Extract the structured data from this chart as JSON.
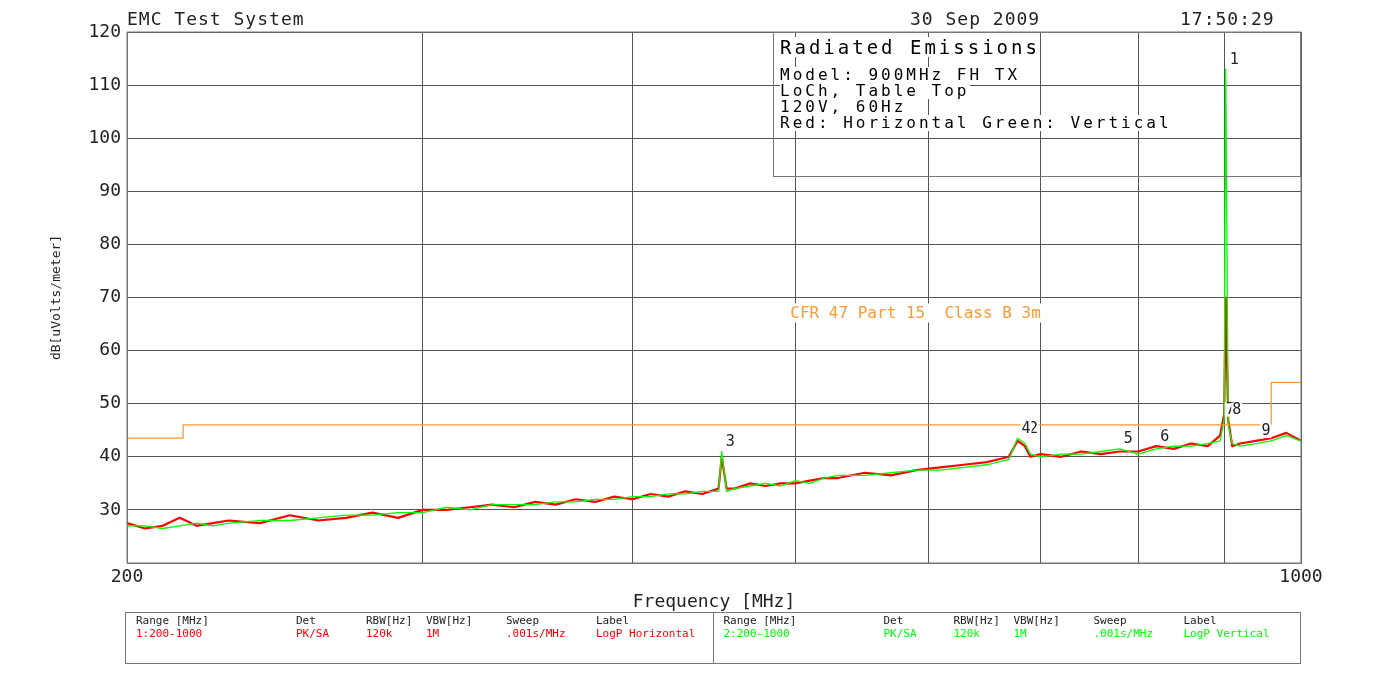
{
  "chart_data": {
    "type": "line",
    "title": "Radiated Emissions",
    "xlabel": "Frequency [MHz]",
    "ylabel": "dB[uVolts/meter]",
    "log": "x",
    "grid": true,
    "xlim": [
      200,
      1000
    ],
    "ylim": [
      20,
      120
    ],
    "xticks": [
      200,
      {
        "value": 300,
        "label": null
      },
      {
        "value": 400,
        "label": null
      },
      {
        "value": 500,
        "label": null
      },
      {
        "value": 600,
        "label": null
      },
      {
        "value": 700,
        "label": null
      },
      {
        "value": 800,
        "label": null
      },
      {
        "value": 900,
        "label": null
      },
      1000
    ],
    "yticks": [
      30,
      40,
      50,
      60,
      70,
      80,
      90,
      100,
      110,
      120
    ],
    "series": [
      {
        "color": "#ff0000",
        "x": [
          200,
          205,
          210,
          215,
          220,
          225,
          230,
          240,
          250,
          260,
          270,
          280,
          290,
          300,
          310,
          320,
          330,
          340,
          350,
          360,
          370,
          380,
          390,
          400,
          410,
          420,
          430,
          440,
          450,
          452,
          455,
          460,
          470,
          480,
          490,
          500,
          510,
          520,
          530,
          550,
          570,
          590,
          610,
          630,
          650,
          660,
          670,
          678,
          685,
          690,
          700,
          720,
          740,
          760,
          780,
          800,
          820,
          840,
          860,
          880,
          895,
          900,
          902,
          905,
          910,
          920,
          940,
          960,
          980,
          1000
        ],
        "values": [
          27.5,
          26.5,
          27,
          28.5,
          27,
          27.5,
          28,
          27.5,
          29,
          28,
          28.5,
          29.5,
          28.5,
          30,
          30,
          30.5,
          31,
          30.5,
          31.5,
          31,
          32,
          31.5,
          32.5,
          32,
          33,
          32.5,
          33.5,
          33,
          34,
          40,
          34,
          34,
          35,
          34.5,
          35,
          35,
          35.5,
          36,
          36,
          37,
          36.5,
          37.5,
          38,
          38.5,
          39,
          39.5,
          40,
          43,
          42,
          40,
          40.5,
          40,
          41,
          40.5,
          41,
          41,
          42,
          41.5,
          42.5,
          42,
          44,
          48,
          70,
          47,
          42,
          42.5,
          43,
          43.5,
          44.5,
          43
        ]
      },
      {
        "color": "#00ff00",
        "x": [
          200,
          205,
          210,
          215,
          220,
          225,
          230,
          240,
          250,
          260,
          270,
          280,
          290,
          300,
          310,
          320,
          330,
          340,
          350,
          360,
          370,
          380,
          390,
          400,
          410,
          420,
          430,
          440,
          450,
          452,
          455,
          460,
          470,
          480,
          490,
          500,
          510,
          520,
          530,
          550,
          570,
          590,
          610,
          630,
          650,
          660,
          670,
          678,
          685,
          690,
          700,
          720,
          740,
          760,
          780,
          800,
          820,
          840,
          860,
          880,
          895,
          900,
          902,
          905,
          910,
          920,
          940,
          960,
          980,
          1000
        ],
        "values": [
          27,
          27,
          26.5,
          27,
          27.5,
          27,
          27.5,
          28,
          28,
          28.5,
          29,
          29,
          29.5,
          29.5,
          30.5,
          30,
          31,
          31,
          31,
          31.5,
          31.5,
          32,
          32,
          32.5,
          32.5,
          33,
          33,
          33.5,
          33.5,
          41,
          33.5,
          34,
          34.5,
          35,
          34.5,
          35.5,
          35,
          36,
          36.5,
          36.5,
          37,
          37.5,
          37.5,
          38,
          38.5,
          39,
          39.5,
          43.5,
          42.5,
          40.5,
          40,
          40.5,
          40.5,
          41,
          41.5,
          40.5,
          41.5,
          42,
          42,
          42.5,
          43,
          47,
          113,
          46,
          42.5,
          42,
          42.5,
          43,
          44,
          43
        ]
      },
      {
        "name": "CFR 47 Part 15  Class B 3m",
        "type": "step",
        "color": "#ff9933",
        "x": [
          200,
          216,
          960,
          1000
        ],
        "values": [
          43.5,
          46,
          54,
          54
        ]
      }
    ],
    "annotations": [
      "EMC Test System",
      "30 Sep 2009",
      "17:50:29",
      "Model: 900MHz FH TX",
      "LoCh, Table Top",
      "120V, 60Hz",
      "Red: Horizontal   Green: Vertical",
      "Range [MHz]",
      "Det",
      "RBW[Hz]",
      "VBW[Hz]",
      "Sweep",
      "Label",
      "1:200-1000",
      "PK/SA",
      "120k",
      "1M",
      ".001s/MHz",
      "LogP Horizontal",
      "Range [MHz]",
      "Det",
      "RBW[Hz]",
      "VBW[Hz]",
      "Sweep",
      "Label",
      "2:200-1000",
      "PK/SA",
      "120k",
      "1M",
      ".001s/MHz",
      "LogP Vertical",
      {
        "text": "1",
        "x": 902,
        "y": 113
      },
      {
        "text": "2",
        "x": 685,
        "y": 43.5
      },
      {
        "text": "3",
        "x": 452,
        "y": 41
      },
      {
        "text": "4",
        "x": 678,
        "y": 43.5
      },
      {
        "text": "5",
        "x": 780,
        "y": 41.5
      },
      {
        "text": "6",
        "x": 820,
        "y": 42
      },
      {
        "text": "7",
        "x": 897,
        "y": 47
      },
      {
        "text": "8",
        "x": 905,
        "y": 47
      },
      {
        "text": "9",
        "x": 942,
        "y": 43
      }
    ]
  }
}
